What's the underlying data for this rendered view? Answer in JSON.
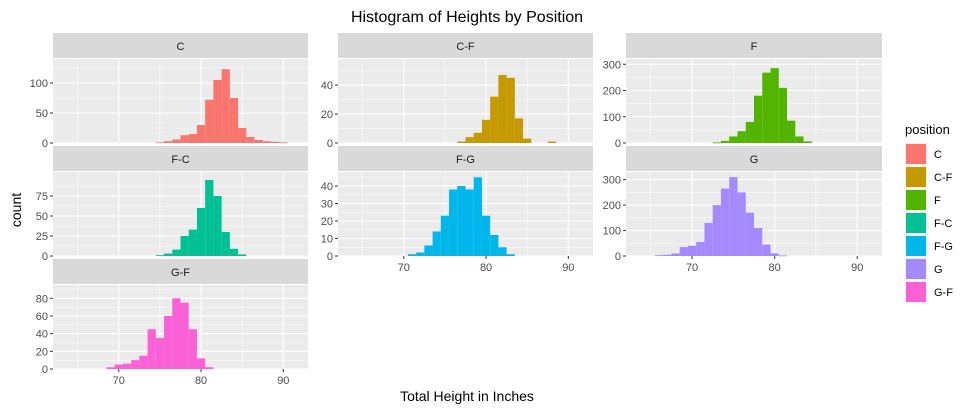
{
  "chart_data": {
    "type": "bar",
    "title": "Histogram of Heights by Position",
    "xlabel": "Total Height in Inches",
    "ylabel": "count",
    "xlim": [
      62,
      93
    ],
    "x_ticks": [
      70,
      80,
      90
    ],
    "bin_width": 1,
    "grid": true,
    "legend": {
      "title": "position",
      "placement": "right",
      "entries": [
        "C",
        "C-F",
        "F",
        "F-C",
        "F-G",
        "G",
        "G-F"
      ]
    },
    "colors": {
      "C": "#F8766D",
      "C-F": "#C49A00",
      "F": "#53B400",
      "F-C": "#00C094",
      "F-G": "#00B6EB",
      "G": "#A58AFF",
      "G-F": "#FB61D7",
      "panel_bg": "#EBEBEB",
      "strip_bg": "#D9D9D9",
      "grid": "#FFFFFF",
      "text": "#4D4D4D"
    },
    "panels": [
      {
        "name": "C",
        "ylim": [
          0,
          140
        ],
        "y_ticks": [
          0,
          50,
          100
        ],
        "bins": [
          {
            "x": 75,
            "count": 1
          },
          {
            "x": 76,
            "count": 3
          },
          {
            "x": 77,
            "count": 6
          },
          {
            "x": 78,
            "count": 13
          },
          {
            "x": 79,
            "count": 15
          },
          {
            "x": 80,
            "count": 30
          },
          {
            "x": 81,
            "count": 72
          },
          {
            "x": 82,
            "count": 105
          },
          {
            "x": 83,
            "count": 123
          },
          {
            "x": 84,
            "count": 75
          },
          {
            "x": 85,
            "count": 25
          },
          {
            "x": 86,
            "count": 10
          },
          {
            "x": 87,
            "count": 5
          },
          {
            "x": 88,
            "count": 3
          },
          {
            "x": 89,
            "count": 2
          },
          {
            "x": 90,
            "count": 1
          }
        ]
      },
      {
        "name": "C-F",
        "ylim": [
          0,
          58
        ],
        "y_ticks": [
          0,
          20,
          40
        ],
        "bins": [
          {
            "x": 77,
            "count": 1
          },
          {
            "x": 78,
            "count": 4
          },
          {
            "x": 79,
            "count": 7
          },
          {
            "x": 80,
            "count": 16
          },
          {
            "x": 81,
            "count": 32
          },
          {
            "x": 82,
            "count": 47
          },
          {
            "x": 83,
            "count": 45
          },
          {
            "x": 84,
            "count": 17
          },
          {
            "x": 85,
            "count": 3
          },
          {
            "x": 88,
            "count": 1
          }
        ]
      },
      {
        "name": "F",
        "ylim": [
          0,
          320
        ],
        "y_ticks": [
          0,
          100,
          200,
          300
        ],
        "bins": [
          {
            "x": 73,
            "count": 2
          },
          {
            "x": 74,
            "count": 8
          },
          {
            "x": 75,
            "count": 25
          },
          {
            "x": 76,
            "count": 45
          },
          {
            "x": 77,
            "count": 80
          },
          {
            "x": 78,
            "count": 180
          },
          {
            "x": 79,
            "count": 268
          },
          {
            "x": 80,
            "count": 285
          },
          {
            "x": 81,
            "count": 210
          },
          {
            "x": 82,
            "count": 85
          },
          {
            "x": 83,
            "count": 25
          },
          {
            "x": 84,
            "count": 6
          }
        ]
      },
      {
        "name": "F-C",
        "ylim": [
          0,
          105
        ],
        "y_ticks": [
          0,
          25,
          50,
          75
        ],
        "bins": [
          {
            "x": 75,
            "count": 1
          },
          {
            "x": 76,
            "count": 3
          },
          {
            "x": 77,
            "count": 8
          },
          {
            "x": 78,
            "count": 25
          },
          {
            "x": 79,
            "count": 33
          },
          {
            "x": 80,
            "count": 60
          },
          {
            "x": 81,
            "count": 95
          },
          {
            "x": 82,
            "count": 75
          },
          {
            "x": 83,
            "count": 30
          },
          {
            "x": 84,
            "count": 9
          },
          {
            "x": 85,
            "count": 2
          }
        ]
      },
      {
        "name": "F-G",
        "ylim": [
          0,
          48
        ],
        "y_ticks": [
          0,
          10,
          20,
          30,
          40
        ],
        "bins": [
          {
            "x": 71,
            "count": 1
          },
          {
            "x": 72,
            "count": 2
          },
          {
            "x": 73,
            "count": 6
          },
          {
            "x": 74,
            "count": 14
          },
          {
            "x": 75,
            "count": 23
          },
          {
            "x": 76,
            "count": 38
          },
          {
            "x": 77,
            "count": 40
          },
          {
            "x": 78,
            "count": 38
          },
          {
            "x": 79,
            "count": 45
          },
          {
            "x": 80,
            "count": 23
          },
          {
            "x": 81,
            "count": 12
          },
          {
            "x": 82,
            "count": 5
          },
          {
            "x": 83,
            "count": 1
          }
        ]
      },
      {
        "name": "G",
        "ylim": [
          0,
          330
        ],
        "y_ticks": [
          0,
          100,
          200,
          300
        ],
        "bins": [
          {
            "x": 66,
            "count": 3
          },
          {
            "x": 67,
            "count": 5
          },
          {
            "x": 68,
            "count": 10
          },
          {
            "x": 69,
            "count": 35
          },
          {
            "x": 70,
            "count": 40
          },
          {
            "x": 71,
            "count": 55
          },
          {
            "x": 72,
            "count": 130
          },
          {
            "x": 73,
            "count": 200
          },
          {
            "x": 74,
            "count": 265
          },
          {
            "x": 75,
            "count": 310
          },
          {
            "x": 76,
            "count": 250
          },
          {
            "x": 77,
            "count": 170
          },
          {
            "x": 78,
            "count": 110
          },
          {
            "x": 79,
            "count": 45
          },
          {
            "x": 80,
            "count": 10
          },
          {
            "x": 81,
            "count": 2
          }
        ]
      },
      {
        "name": "G-F",
        "ylim": [
          0,
          95
        ],
        "y_ticks": [
          0,
          20,
          40,
          60,
          80
        ],
        "bins": [
          {
            "x": 69,
            "count": 2
          },
          {
            "x": 70,
            "count": 5
          },
          {
            "x": 71,
            "count": 6
          },
          {
            "x": 72,
            "count": 10
          },
          {
            "x": 73,
            "count": 15
          },
          {
            "x": 74,
            "count": 45
          },
          {
            "x": 75,
            "count": 35
          },
          {
            "x": 76,
            "count": 60
          },
          {
            "x": 77,
            "count": 80
          },
          {
            "x": 78,
            "count": 75
          },
          {
            "x": 79,
            "count": 45
          },
          {
            "x": 80,
            "count": 12
          },
          {
            "x": 81,
            "count": 2
          }
        ]
      }
    ]
  }
}
